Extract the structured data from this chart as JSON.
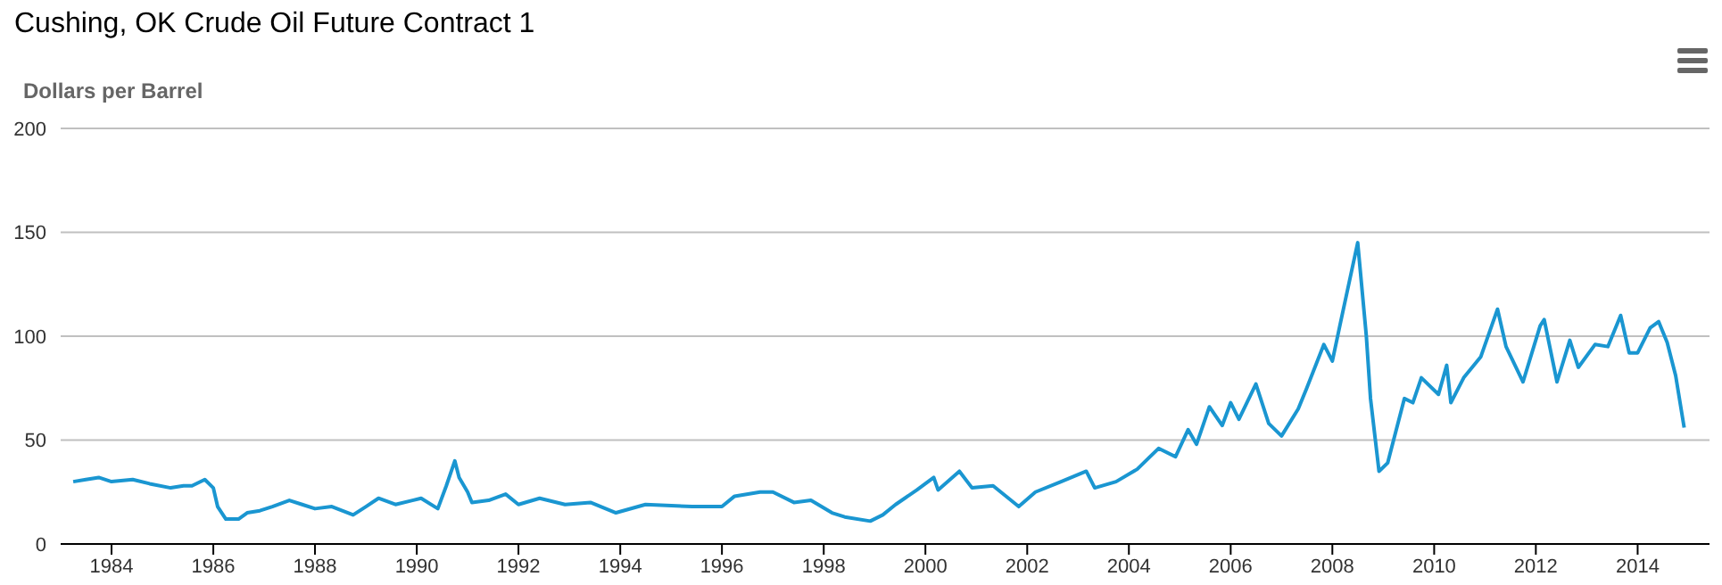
{
  "chart_data": {
    "type": "line",
    "title": "Cushing, OK Crude Oil Future Contract 1",
    "ylabel": "Dollars per Barrel",
    "x": [
      "1983-04",
      "1983-07",
      "1983-10",
      "1984-01",
      "1984-06",
      "1984-10",
      "1985-03",
      "1985-06",
      "1985-08",
      "1985-11",
      "1986-01",
      "1986-02",
      "1986-04",
      "1986-07",
      "1986-09",
      "1986-12",
      "1987-03",
      "1987-07",
      "1987-10",
      "1988-01",
      "1988-05",
      "1988-10",
      "1989-01",
      "1989-04",
      "1989-08",
      "1989-12",
      "1990-02",
      "1990-06",
      "1990-08",
      "1990-10",
      "1990-11",
      "1991-01",
      "1991-02",
      "1991-06",
      "1991-10",
      "1992-01",
      "1992-06",
      "1992-12",
      "1993-06",
      "1993-12",
      "1994-07",
      "1995-06",
      "1996-01",
      "1996-04",
      "1996-10",
      "1997-01",
      "1997-06",
      "1997-10",
      "1998-03",
      "1998-06",
      "1998-12",
      "1999-03",
      "1999-06",
      "1999-11",
      "2000-03",
      "2000-04",
      "2000-09",
      "2000-12",
      "2001-05",
      "2001-11",
      "2002-03",
      "2002-09",
      "2003-03",
      "2003-05",
      "2003-10",
      "2004-03",
      "2004-08",
      "2004-12",
      "2005-03",
      "2005-05",
      "2005-08",
      "2005-11",
      "2006-01",
      "2006-03",
      "2006-07",
      "2006-10",
      "2007-01",
      "2007-05",
      "2007-07",
      "2007-11",
      "2008-01",
      "2008-03",
      "2008-07",
      "2008-09",
      "2008-10",
      "2008-12",
      "2009-02",
      "2009-06",
      "2009-08",
      "2009-10",
      "2010-02",
      "2010-04",
      "2010-05",
      "2010-08",
      "2010-12",
      "2011-04",
      "2011-06",
      "2011-10",
      "2012-02",
      "2012-03",
      "2012-06",
      "2012-09",
      "2012-11",
      "2013-03",
      "2013-06",
      "2013-09",
      "2013-11",
      "2014-01",
      "2014-04",
      "2014-06",
      "2014-08",
      "2014-10",
      "2014-12"
    ],
    "series": [
      {
        "color": "#1a96d1",
        "values": [
          30,
          31,
          32,
          30,
          31,
          29,
          27,
          28,
          28,
          31,
          27,
          18,
          12,
          12,
          15,
          16,
          18,
          21,
          19,
          17,
          18,
          14,
          18,
          22,
          19,
          21,
          22,
          17,
          28,
          40,
          32,
          25,
          20,
          21,
          24,
          19,
          22,
          19,
          20,
          15,
          19,
          18,
          18,
          23,
          25,
          25,
          20,
          21,
          15,
          13,
          11,
          14,
          19,
          26,
          32,
          26,
          35,
          27,
          28,
          18,
          25,
          30,
          35,
          27,
          30,
          36,
          46,
          42,
          55,
          48,
          66,
          57,
          68,
          60,
          77,
          58,
          52,
          65,
          75,
          96,
          88,
          107,
          145,
          100,
          70,
          35,
          39,
          70,
          68,
          80,
          72,
          86,
          68,
          80,
          90,
          113,
          95,
          78,
          105,
          108,
          78,
          98,
          85,
          96,
          95,
          110,
          92,
          92,
          104,
          107,
          97,
          81,
          56
        ]
      }
    ],
    "xlim": [
      "1983-01-01",
      "2015-06-01"
    ],
    "xticks": [
      {
        "value": "1984-01-01",
        "label": "1984"
      },
      {
        "value": "1986-01-01",
        "label": "1986"
      },
      {
        "value": "1988-01-01",
        "label": "1988"
      },
      {
        "value": "1990-01-01",
        "label": "1990"
      },
      {
        "value": "1992-01-01",
        "label": "1992"
      },
      {
        "value": "1994-01-01",
        "label": "1994"
      },
      {
        "value": "1996-01-01",
        "label": "1996"
      },
      {
        "value": "1998-01-01",
        "label": "1998"
      },
      {
        "value": "2000-01-01",
        "label": "2000"
      },
      {
        "value": "2002-01-01",
        "label": "2002"
      },
      {
        "value": "2004-01-01",
        "label": "2004"
      },
      {
        "value": "2006-01-01",
        "label": "2006"
      },
      {
        "value": "2008-01-01",
        "label": "2008"
      },
      {
        "value": "2010-01-01",
        "label": "2010"
      },
      {
        "value": "2012-01-01",
        "label": "2012"
      },
      {
        "value": "2014-01-01",
        "label": "2014"
      }
    ],
    "ylim": [
      0,
      200
    ],
    "yticks": [
      0,
      50,
      100,
      150,
      200
    ],
    "grid": "y",
    "marker": "none",
    "line_style": "solid"
  }
}
